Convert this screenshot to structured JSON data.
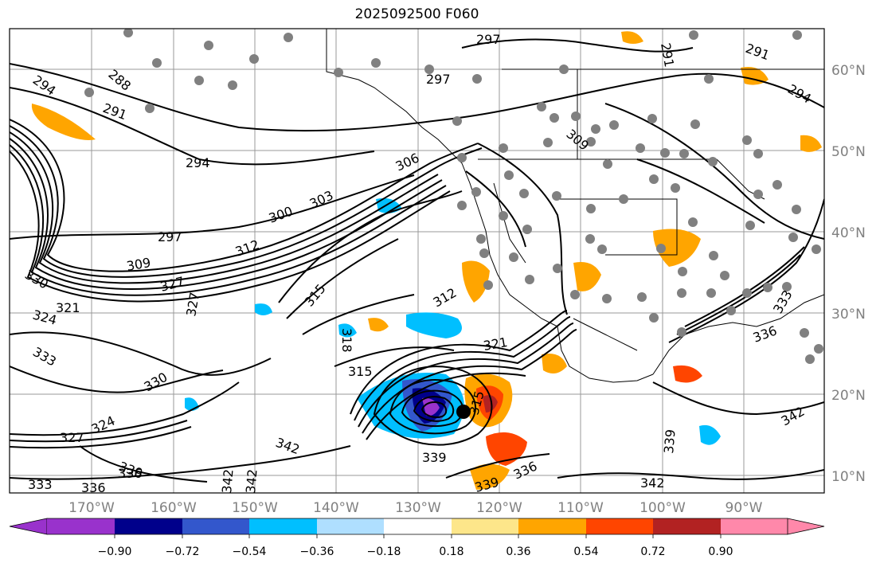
{
  "title": "2025092500 F060",
  "map": {
    "lat_labels": [
      "60°N",
      "50°N",
      "40°N",
      "30°N",
      "20°N",
      "10°N"
    ],
    "lon_labels": [
      "170°W",
      "160°W",
      "150°W",
      "140°W",
      "130°W",
      "120°W",
      "110°W",
      "100°W",
      "90°W"
    ],
    "contour_labels": [
      "297",
      "291",
      "288",
      "294",
      "291",
      "297",
      "309",
      "291",
      "294",
      "294",
      "306",
      "303",
      "300",
      "297",
      "312",
      "309",
      "327",
      "327",
      "330",
      "324",
      "321",
      "333",
      "330",
      "315",
      "312",
      "318",
      "321",
      "315",
      "315",
      "324",
      "336",
      "333",
      "339",
      "336",
      "336",
      "339",
      "342",
      "342",
      "339",
      "342",
      "342",
      "333",
      "336",
      "339",
      "342",
      "327"
    ],
    "colors": {
      "ocean": "#ffffff",
      "coast": "#000000",
      "grid": "#999999",
      "contour": "#000000",
      "station_dot": "#808080"
    }
  },
  "colorbar": {
    "tick_labels": [
      "−0.90",
      "−0.72",
      "−0.54",
      "−0.36",
      "−0.18",
      "0.18",
      "0.36",
      "0.54",
      "0.72",
      "0.90"
    ],
    "bins": [
      "#9932cc",
      "#00008b",
      "#3357cc",
      "#00bfff",
      "#afdfff",
      "#ffffff",
      "#fde68a",
      "#ffa500",
      "#ff4500",
      "#b22222",
      "#ff88aa"
    ]
  }
}
